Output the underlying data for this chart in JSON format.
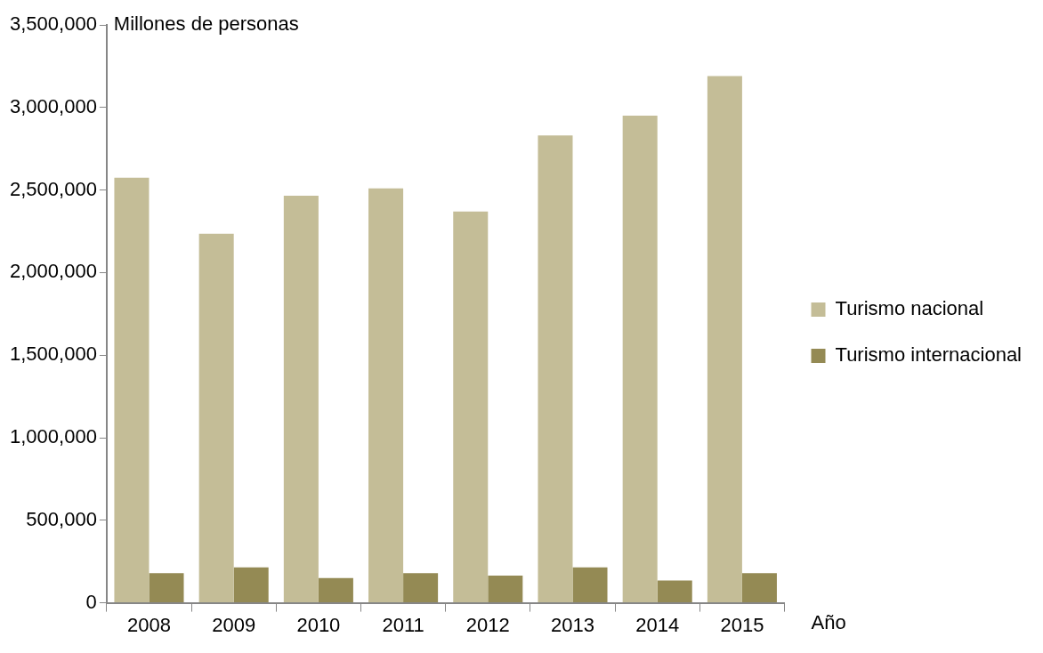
{
  "chart_data": {
    "type": "bar",
    "ylabel": "Millones de personas",
    "xlabel": "Año",
    "categories": [
      "2008",
      "2009",
      "2010",
      "2011",
      "2012",
      "2013",
      "2014",
      "2015"
    ],
    "series": [
      {
        "name": "Turismo nacional",
        "color": "#c4bd97",
        "values": [
          2575000,
          2235000,
          2465000,
          2510000,
          2370000,
          2830000,
          2950000,
          3190000
        ]
      },
      {
        "name": "Turismo internacional",
        "color": "#948a54",
        "values": [
          180000,
          215000,
          150000,
          180000,
          165000,
          215000,
          135000,
          180000
        ]
      }
    ],
    "ylim": [
      0,
      3500000
    ],
    "yticks": [
      0,
      {
        "value": 500000,
        "label": "500,000"
      },
      {
        "value": 1000000,
        "label": "1,000,000"
      },
      {
        "value": 1500000,
        "label": "1,500,000"
      },
      {
        "value": 2000000,
        "label": "2,000,000"
      },
      {
        "value": 2500000,
        "label": "2,500,000"
      },
      {
        "value": 3000000,
        "label": "3,000,000"
      },
      {
        "value": 3500000,
        "label": "3,500,000"
      }
    ],
    "grid": false,
    "legend": "right"
  }
}
